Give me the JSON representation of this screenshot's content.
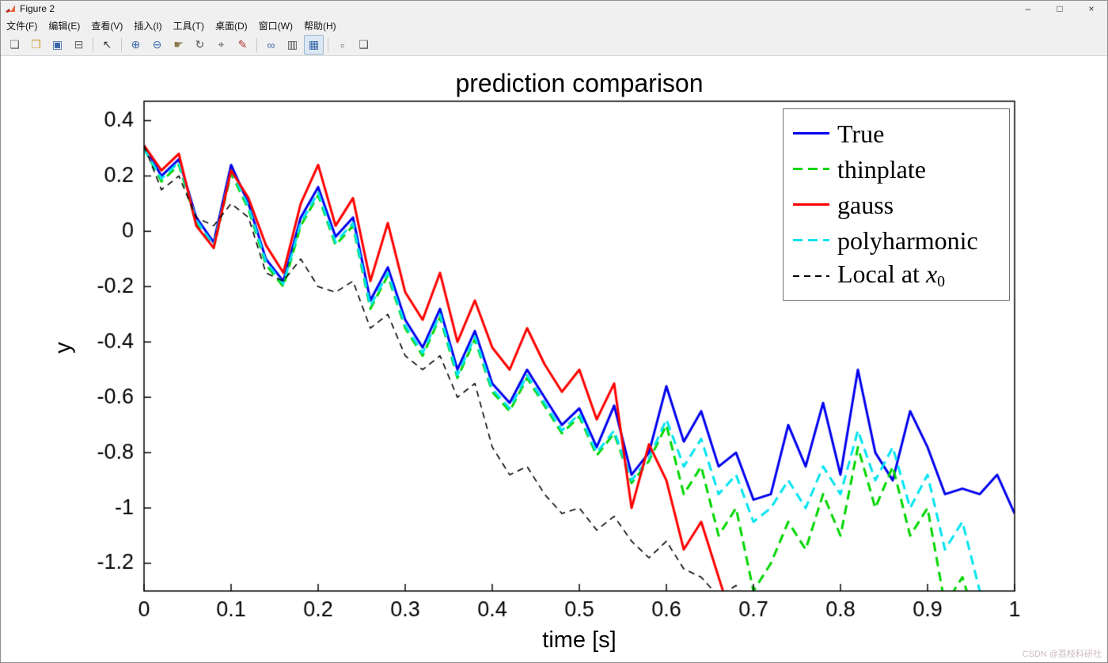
{
  "window": {
    "title": "Figure 2",
    "controls": {
      "minimize": "–",
      "maximize": "□",
      "close": "×"
    }
  },
  "menubar": {
    "items": [
      {
        "name": "file",
        "label": "文件(F)"
      },
      {
        "name": "edit",
        "label": "编辑(E)"
      },
      {
        "name": "view",
        "label": "查看(V)"
      },
      {
        "name": "insert",
        "label": "插入(I)"
      },
      {
        "name": "tools",
        "label": "工具(T)"
      },
      {
        "name": "desktop",
        "label": "桌面(D)"
      },
      {
        "name": "window",
        "label": "窗口(W)"
      },
      {
        "name": "help",
        "label": "帮助(H)"
      }
    ]
  },
  "toolbar": {
    "items": [
      {
        "name": "new-figure",
        "glyph": "❏",
        "color": "#666666"
      },
      {
        "name": "open-file",
        "glyph": "❒",
        "color": "#c9a23c"
      },
      {
        "name": "save-figure",
        "glyph": "▣",
        "color": "#3a66a8"
      },
      {
        "name": "print-figure",
        "glyph": "⊟",
        "color": "#666666"
      },
      {
        "sep": true
      },
      {
        "name": "edit-cursor",
        "glyph": "↖",
        "color": "#333333"
      },
      {
        "sep": true
      },
      {
        "name": "zoom-in",
        "glyph": "⊕",
        "color": "#3a66a8"
      },
      {
        "name": "zoom-out",
        "glyph": "⊖",
        "color": "#3a66a8"
      },
      {
        "name": "pan",
        "glyph": "☛",
        "color": "#8a7a4a"
      },
      {
        "name": "rotate-3d",
        "glyph": "↻",
        "color": "#555555"
      },
      {
        "name": "data-cursor",
        "glyph": "⌖",
        "color": "#555555"
      },
      {
        "name": "brush",
        "glyph": "✎",
        "color": "#b03434"
      },
      {
        "sep": true
      },
      {
        "name": "link-plot",
        "glyph": "∞",
        "color": "#3a66a8"
      },
      {
        "name": "insert-colorbar",
        "glyph": "▥",
        "color": "#555555"
      },
      {
        "name": "insert-legend",
        "glyph": "▦",
        "color": "#3a66a8",
        "active": true
      },
      {
        "sep": true
      },
      {
        "name": "hide-plot-tools",
        "glyph": "▫",
        "color": "#555555"
      },
      {
        "name": "show-plot-tools",
        "glyph": "❑",
        "color": "#555555"
      }
    ]
  },
  "chart": {
    "title": "prediction comparison",
    "xlabel": "time [s]",
    "ylabel": "y"
  },
  "legend": {
    "items": [
      {
        "label": "True"
      },
      {
        "label": "thinplate"
      },
      {
        "label": "gauss"
      },
      {
        "label": "polyharmonic"
      },
      {
        "label": "Local at ",
        "var": "x",
        "sub": "0"
      }
    ]
  },
  "watermark": "CSDN @荔枝科研社",
  "chart_data": {
    "type": "line",
    "title": "prediction comparison",
    "xlabel": "time [s]",
    "ylabel": "y",
    "xlim": [
      0,
      1
    ],
    "ylim": [
      -1.3,
      0.47
    ],
    "grid": false,
    "legend_position": "top-right-inside",
    "xticks": {
      "values": [
        0,
        0.1,
        0.2,
        0.3,
        0.4,
        0.5,
        0.6,
        0.7,
        0.8,
        0.9,
        1
      ],
      "labels": [
        "0",
        "0.1",
        "0.2",
        "0.3",
        "0.4",
        "0.5",
        "0.6",
        "0.7",
        "0.8",
        "0.9",
        "1"
      ]
    },
    "yticks": {
      "values": [
        0.4,
        0.2,
        0,
        -0.2,
        -0.4,
        -0.6,
        -0.8,
        -1,
        -1.2
      ],
      "labels": [
        "0.4",
        "0.2",
        "0",
        "-0.2",
        "-0.4",
        "-0.6",
        "-0.8",
        "-1",
        "-1.2"
      ]
    },
    "x": [
      0,
      0.02,
      0.04,
      0.06,
      0.08,
      0.1,
      0.12,
      0.14,
      0.16,
      0.18,
      0.2,
      0.22,
      0.24,
      0.26,
      0.28,
      0.3,
      0.32,
      0.34,
      0.36,
      0.38,
      0.4,
      0.42,
      0.44,
      0.46,
      0.48,
      0.5,
      0.52,
      0.54,
      0.56,
      0.58,
      0.6,
      0.62,
      0.64,
      0.66,
      0.68,
      0.7,
      0.72,
      0.74,
      0.76,
      0.78,
      0.8,
      0.82,
      0.84,
      0.86,
      0.88,
      0.9,
      0.92,
      0.94,
      0.96,
      0.98,
      1
    ],
    "draw_order": [
      0,
      1,
      3,
      2,
      4
    ],
    "series": [
      {
        "name": "True",
        "color": "#0000ee",
        "width": 3,
        "dash": null,
        "values": [
          0.31,
          0.2,
          0.26,
          0.05,
          -0.04,
          0.24,
          0.1,
          -0.1,
          -0.18,
          0.05,
          0.16,
          -0.02,
          0.05,
          -0.25,
          -0.13,
          -0.32,
          -0.42,
          -0.28,
          -0.5,
          -0.36,
          -0.55,
          -0.62,
          -0.5,
          -0.6,
          -0.7,
          -0.64,
          -0.78,
          -0.63,
          -0.88,
          -0.8,
          -0.56,
          -0.76,
          -0.65,
          -0.85,
          -0.8,
          -0.97,
          -0.95,
          -0.7,
          -0.85,
          -0.62,
          -0.88,
          -0.5,
          -0.8,
          -0.9,
          -0.65,
          -0.78,
          -0.95,
          -0.93,
          -0.95,
          -0.88,
          -1.02
        ]
      },
      {
        "name": "thinplate",
        "color": "#00d600",
        "width": 3,
        "dash": [
          12,
          7
        ],
        "values": [
          0.3,
          0.18,
          0.24,
          0.03,
          -0.06,
          0.21,
          0.08,
          -0.12,
          -0.2,
          0.02,
          0.13,
          -0.05,
          0.02,
          -0.28,
          -0.16,
          -0.35,
          -0.45,
          -0.31,
          -0.53,
          -0.39,
          -0.58,
          -0.65,
          -0.53,
          -0.63,
          -0.73,
          -0.67,
          -0.81,
          -0.73,
          -0.91,
          -0.83,
          -0.7,
          -0.95,
          -0.85,
          -1.1,
          -1.0,
          -1.3,
          -1.2,
          -1.05,
          -1.15,
          -0.95,
          -1.1,
          -0.78,
          -1.0,
          -0.85,
          -1.1,
          -1.0,
          -1.35,
          -1.25,
          -1.45,
          -1.35,
          -1.4
        ]
      },
      {
        "name": "gauss",
        "color": "#ff0000",
        "width": 3,
        "dash": null,
        "values": [
          0.31,
          0.22,
          0.28,
          0.02,
          -0.06,
          0.22,
          0.12,
          -0.05,
          -0.15,
          0.1,
          0.24,
          0.02,
          0.12,
          -0.18,
          0.03,
          -0.22,
          -0.32,
          -0.15,
          -0.4,
          -0.25,
          -0.42,
          -0.5,
          -0.35,
          -0.48,
          -0.58,
          -0.5,
          -0.68,
          -0.55,
          -1.0,
          -0.77,
          -0.9,
          -1.15,
          -1.05,
          -1.25,
          -1.45,
          null,
          null,
          null,
          null,
          null,
          null,
          null,
          null,
          null,
          null,
          null,
          null,
          null,
          null,
          null,
          null
        ]
      },
      {
        "name": "polyharmonic",
        "color": "#00e4f0",
        "width": 3,
        "dash": [
          12,
          7
        ],
        "values": [
          0.3,
          0.19,
          0.25,
          0.04,
          -0.05,
          0.22,
          0.09,
          -0.11,
          -0.19,
          0.03,
          0.14,
          -0.04,
          0.03,
          -0.27,
          -0.15,
          -0.34,
          -0.44,
          -0.3,
          -0.52,
          -0.38,
          -0.57,
          -0.64,
          -0.52,
          -0.62,
          -0.72,
          -0.66,
          -0.8,
          -0.72,
          -0.9,
          -0.82,
          -0.68,
          -0.85,
          -0.75,
          -0.95,
          -0.88,
          -1.05,
          -1.0,
          -0.9,
          -1.0,
          -0.85,
          -0.95,
          -0.72,
          -0.9,
          -0.78,
          -1.0,
          -0.88,
          -1.15,
          -1.05,
          -1.3,
          -1.35,
          -1.45
        ]
      },
      {
        "name": "Local at x0",
        "color": "#000000",
        "width": 1.6,
        "dash": [
          8,
          6
        ],
        "values": [
          0.31,
          0.15,
          0.2,
          0.05,
          0.02,
          0.1,
          0.05,
          -0.15,
          -0.18,
          -0.1,
          -0.2,
          -0.22,
          -0.18,
          -0.35,
          -0.3,
          -0.45,
          -0.5,
          -0.45,
          -0.6,
          -0.55,
          -0.78,
          -0.88,
          -0.85,
          -0.95,
          -1.02,
          -1.0,
          -1.08,
          -1.03,
          -1.12,
          -1.18,
          -1.12,
          -1.22,
          -1.25,
          -1.32,
          -1.28,
          -1.4,
          null,
          null,
          null,
          null,
          null,
          null,
          null,
          null,
          null,
          null,
          null,
          null,
          null,
          null,
          null
        ]
      }
    ]
  }
}
